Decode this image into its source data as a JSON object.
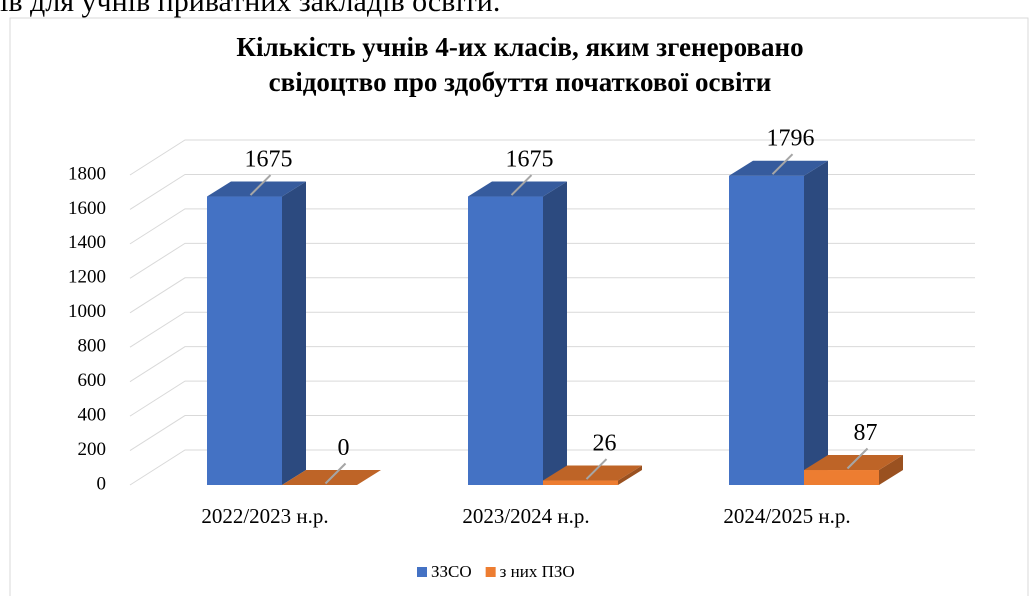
{
  "page_text": "ів для учнів приватних закладів освіти.",
  "chart_data": {
    "type": "bar3d",
    "title": "Кількість учнів 4-их класів, яким згенеровано свідоцтво про здобуття початкової освіти",
    "categories": [
      "2022/2023 н.р.",
      "2023/2024 н.р.",
      "2024/2025 н.р."
    ],
    "series": [
      {
        "name": "ЗЗСО",
        "color": "#4472c4",
        "values": [
          1675,
          1675,
          1796
        ]
      },
      {
        "name": "з них ПЗО",
        "color": "#ed7d31",
        "values": [
          0,
          26,
          87
        ]
      }
    ],
    "ylim": [
      0,
      1800
    ],
    "yticks": [
      0,
      200,
      400,
      600,
      800,
      1000,
      1200,
      1400,
      1600,
      1800
    ],
    "grid": true,
    "legend": "bottom"
  }
}
